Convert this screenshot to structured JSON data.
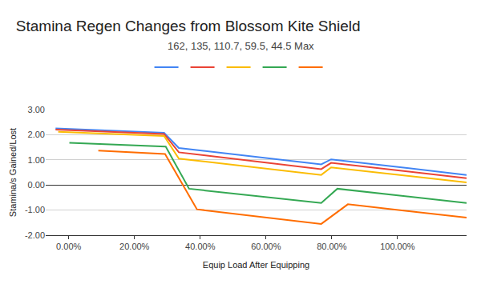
{
  "chart_data": {
    "type": "line",
    "title": "Stamina Regen Changes from Blossom Kite Shield",
    "subtitle": "162, 135, 110.7, 59.5, 44.5 Max",
    "x_label": "Equip Load After Equipping",
    "y_label": "Stamina/s Gained/Lost",
    "xlim": [
      -7,
      121
    ],
    "xticks": [
      {
        "value": 0,
        "label": "0.00%"
      },
      {
        "value": 20,
        "label": "20.00%"
      },
      {
        "value": 40,
        "label": "40.00%"
      },
      {
        "value": 60,
        "label": "60.00%"
      },
      {
        "value": 80,
        "label": "80.00%"
      },
      {
        "value": 100,
        "label": "100.00%"
      }
    ],
    "ylim": [
      -2,
      3
    ],
    "yticks": [
      {
        "value": -2,
        "label": "-2.00"
      },
      {
        "value": -1,
        "label": "-1.00"
      },
      {
        "value": 0,
        "label": "0.00"
      },
      {
        "value": 1,
        "label": "1.00"
      },
      {
        "value": 2,
        "label": "2.00"
      },
      {
        "value": 3,
        "label": "3.00"
      }
    ],
    "grid": true,
    "legend": "top",
    "series": [
      {
        "color": "#4285f4",
        "x": [
          -4,
          29,
          33.5,
          76.8,
          79.8,
          121
        ],
        "values": [
          2.25,
          2.08,
          1.47,
          0.82,
          1.02,
          0.4
        ]
      },
      {
        "color": "#ea4335",
        "x": [
          -4,
          29,
          33.5,
          76.8,
          79.8,
          121
        ],
        "values": [
          2.2,
          2.03,
          1.3,
          0.63,
          0.88,
          0.27
        ]
      },
      {
        "color": "#fbbc04",
        "x": [
          -3.2,
          29,
          33.5,
          76.8,
          79.8,
          121
        ],
        "values": [
          2.12,
          1.95,
          1.05,
          0.4,
          0.7,
          0.1
        ]
      },
      {
        "color": "#34a853",
        "x": [
          0.2,
          29.5,
          36.6,
          76.8,
          81.7,
          121
        ],
        "values": [
          1.68,
          1.53,
          -0.15,
          -0.72,
          -0.15,
          -0.72
        ]
      },
      {
        "color": "#ff6d01",
        "x": [
          9,
          29.3,
          39,
          76.8,
          84.9,
          121
        ],
        "values": [
          1.37,
          1.23,
          -0.97,
          -1.55,
          -0.77,
          -1.3
        ]
      }
    ]
  }
}
